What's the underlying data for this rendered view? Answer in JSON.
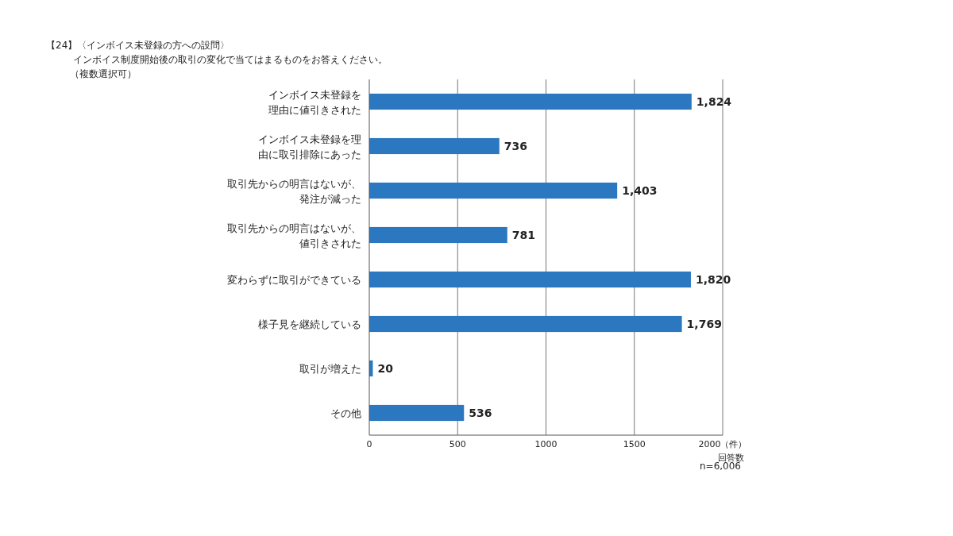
{
  "chart_data": {
    "type": "bar",
    "orientation": "horizontal",
    "title": "【24】〈インボイス未登録の方への設問〉",
    "subtitle": "インボイス制度開始後の取引の変化で当てはまるものをお答えください。（複数選択可）",
    "categories": [
      "インボイス未登録を理由に値引きされた",
      "インボイス未登録を理由に取引排除にあった",
      "取引先からの明言はないが、発注が減った",
      "取引先からの明言はないが、値引きされた",
      "変わらずに取引ができている",
      "様子見を継続している",
      "取引が増えた",
      "その他"
    ],
    "values": [
      1824,
      736,
      1403,
      781,
      1820,
      1769,
      20,
      536
    ],
    "color": "#2b77c0",
    "data_labels": true,
    "value_labels": [
      "1,824",
      "736",
      "1,403",
      "781",
      "1,820",
      "1,769",
      "20",
      "536"
    ],
    "xlim": [
      0,
      2000
    ],
    "xticks": [
      0,
      500,
      1000,
      1500,
      {
        "value": 2000,
        "label": "2000（件）"
      }
    ],
    "xlabel": "回答数",
    "grid": "x",
    "annotations": [
      "n=6,006"
    ]
  }
}
